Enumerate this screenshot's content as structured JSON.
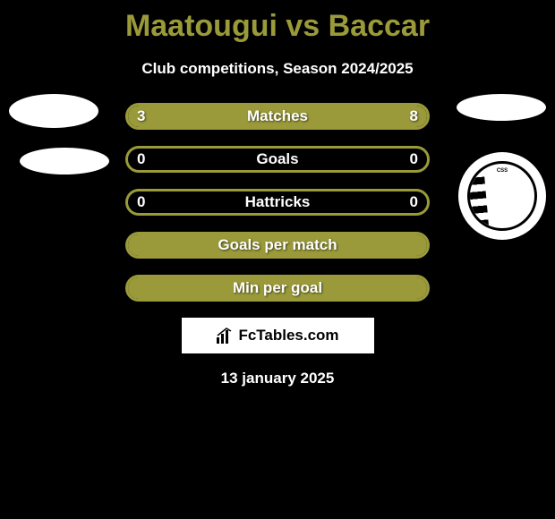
{
  "title": "Maatougui vs Baccar",
  "subtitle": "Club competitions, Season 2024/2025",
  "date": "13 january 2025",
  "brand": "FcTables.com",
  "colors": {
    "background": "#000000",
    "accent": "#9a9a3a",
    "text_primary": "#ffffff",
    "title_color": "#9a9a3a"
  },
  "stats": [
    {
      "label": "Matches",
      "left_value": "3",
      "right_value": "8",
      "left_fill_pct": 27,
      "right_fill_pct": 73,
      "show_values": true
    },
    {
      "label": "Goals",
      "left_value": "0",
      "right_value": "0",
      "left_fill_pct": 0,
      "right_fill_pct": 0,
      "show_values": true
    },
    {
      "label": "Hattricks",
      "left_value": "0",
      "right_value": "0",
      "left_fill_pct": 0,
      "right_fill_pct": 0,
      "show_values": true
    },
    {
      "label": "Goals per match",
      "left_value": "",
      "right_value": "",
      "left_fill_pct": 100,
      "right_fill_pct": 0,
      "show_values": false
    },
    {
      "label": "Min per goal",
      "left_value": "",
      "right_value": "",
      "left_fill_pct": 100,
      "right_fill_pct": 0,
      "show_values": false
    }
  ],
  "right_club_badge": "CSS"
}
